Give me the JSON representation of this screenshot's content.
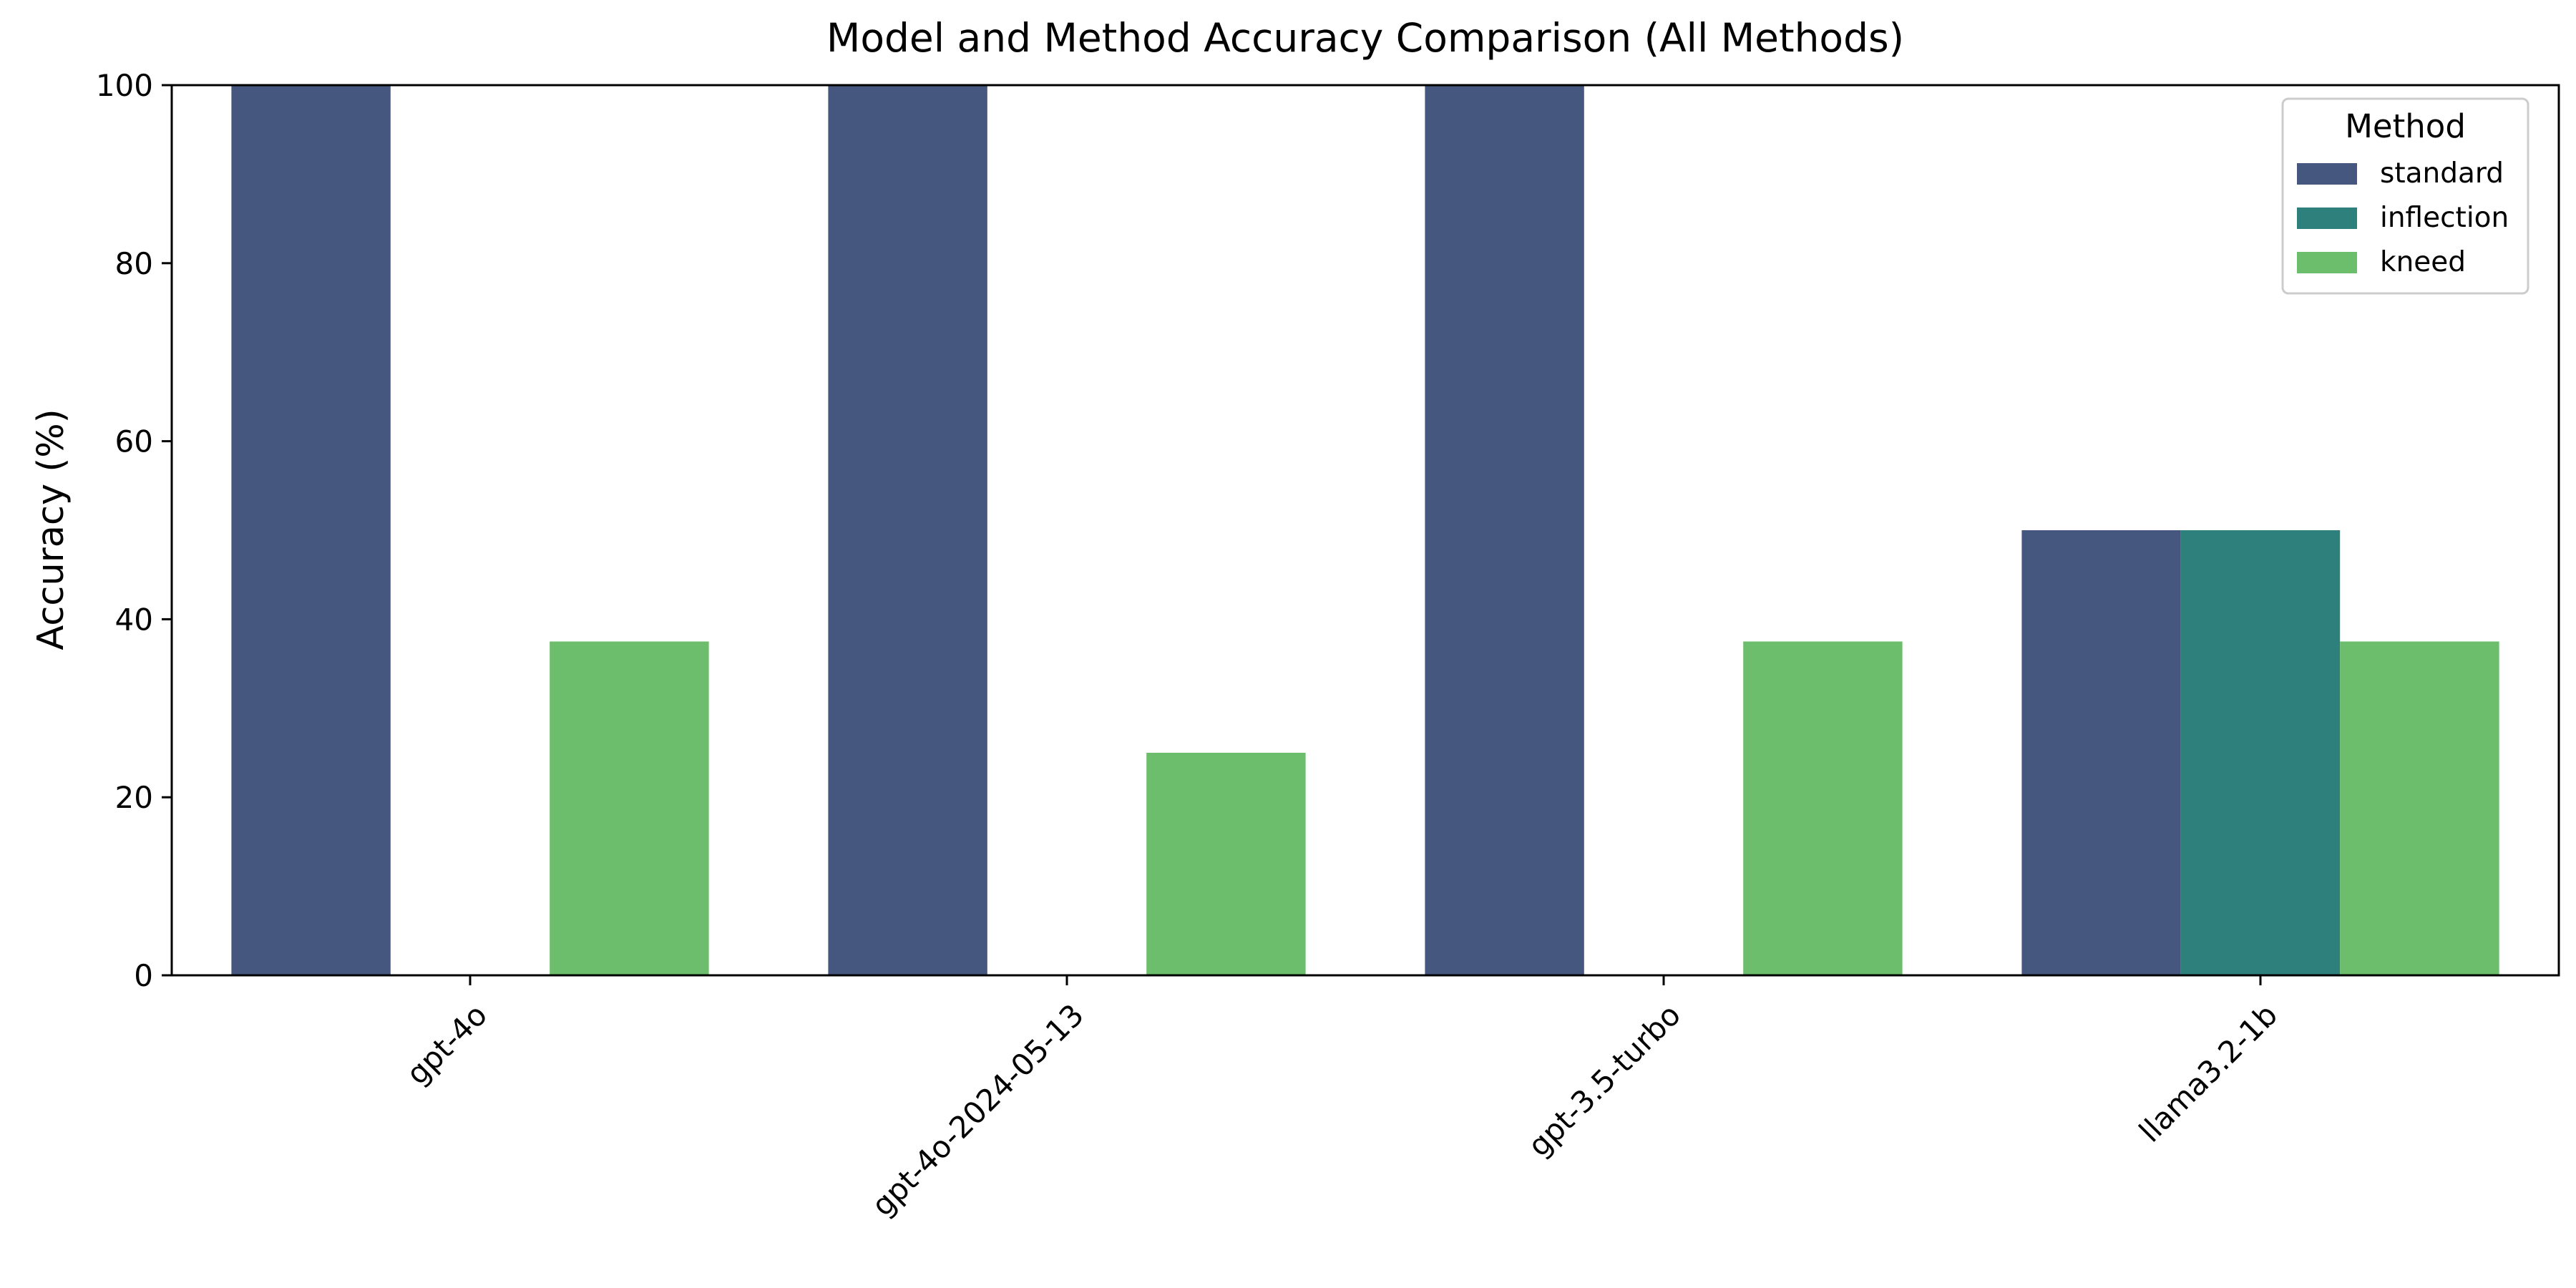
{
  "chart_data": {
    "type": "bar",
    "title": "Model and Method Accuracy Comparison (All Methods)",
    "xlabel": "",
    "ylabel": "Accuracy (%)",
    "categories": [
      "gpt-4o",
      "gpt-4o-2024-05-13",
      "gpt-3.5-turbo",
      "llama3.2-1b"
    ],
    "series": [
      {
        "name": "standard",
        "values": [
          100,
          100,
          100,
          50
        ],
        "color": "#46577f"
      },
      {
        "name": "inflection",
        "values": [
          0,
          0,
          0,
          50
        ],
        "color": "#2e807d"
      },
      {
        "name": "kneed",
        "values": [
          37.5,
          25,
          37.5,
          37.5
        ],
        "color": "#6cbd6c"
      }
    ],
    "ylim": [
      0,
      100
    ],
    "yticks": [
      "0",
      "20",
      "40",
      "60",
      "80",
      "100"
    ],
    "legend": {
      "title": "Method",
      "placement": "top-right"
    },
    "grid": false,
    "xtick_rotation": "45 degrees"
  }
}
